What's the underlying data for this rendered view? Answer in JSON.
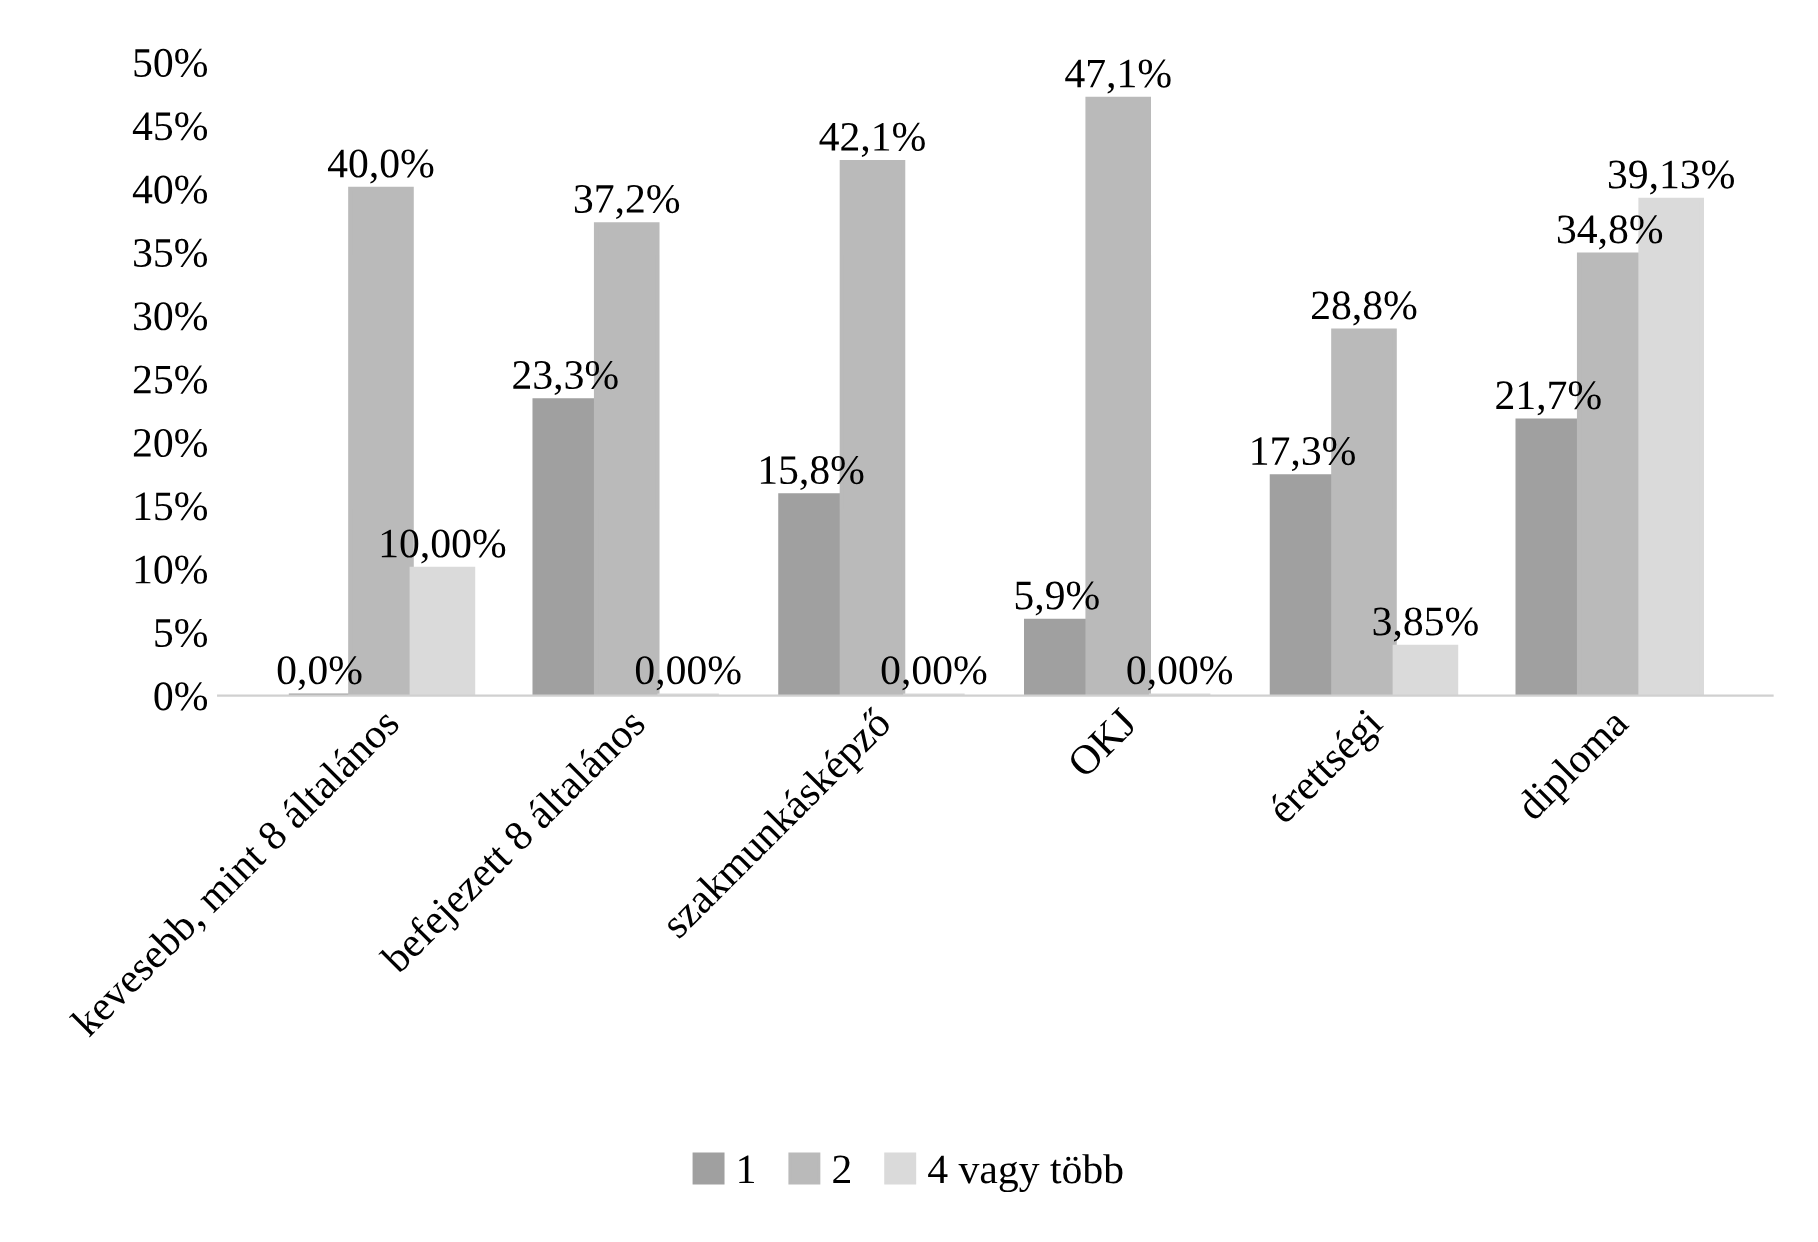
{
  "chart_data": {
    "type": "bar",
    "categories": [
      "kevesebb, mint 8 általános",
      "befejezett 8 általános",
      "szakmunkásképző",
      "OKJ",
      "érettségi",
      "diploma"
    ],
    "series": [
      {
        "name": "1",
        "color": "#a0a0a0",
        "values": [
          0.0,
          23.3,
          15.8,
          5.9,
          17.3,
          21.7
        ],
        "value_labels": [
          "0,0%",
          "23,3%",
          "15,8%",
          "5,9%",
          "17,3%",
          "21,7%"
        ]
      },
      {
        "name": "2",
        "color": "#bababa",
        "values": [
          40.0,
          37.2,
          42.1,
          47.1,
          28.8,
          34.8
        ],
        "value_labels": [
          "40,0%",
          "37,2%",
          "42,1%",
          "47,1%",
          "28,8%",
          "34,8%"
        ]
      },
      {
        "name": "4 vagy több",
        "color": "#dadada",
        "values": [
          10.0,
          0.0,
          0.0,
          0.0,
          3.85,
          39.13
        ],
        "value_labels": [
          "10,00%",
          "0,00%",
          "0,00%",
          "0,00%",
          "3,85%",
          "39,13%"
        ]
      }
    ],
    "ylim": [
      0,
      50
    ],
    "yticks": [
      {
        "value": 0,
        "label": "0%"
      },
      {
        "value": 5,
        "label": "5%"
      },
      {
        "value": 10,
        "label": "10%"
      },
      {
        "value": 15,
        "label": "15%"
      },
      {
        "value": 20,
        "label": "20%"
      },
      {
        "value": 25,
        "label": "25%"
      },
      {
        "value": 30,
        "label": "30%"
      },
      {
        "value": 35,
        "label": "35%"
      },
      {
        "value": 40,
        "label": "40%"
      },
      {
        "value": 45,
        "label": "45%"
      },
      {
        "value": 50,
        "label": "50%"
      }
    ],
    "grid": false,
    "legend": "bottom"
  }
}
